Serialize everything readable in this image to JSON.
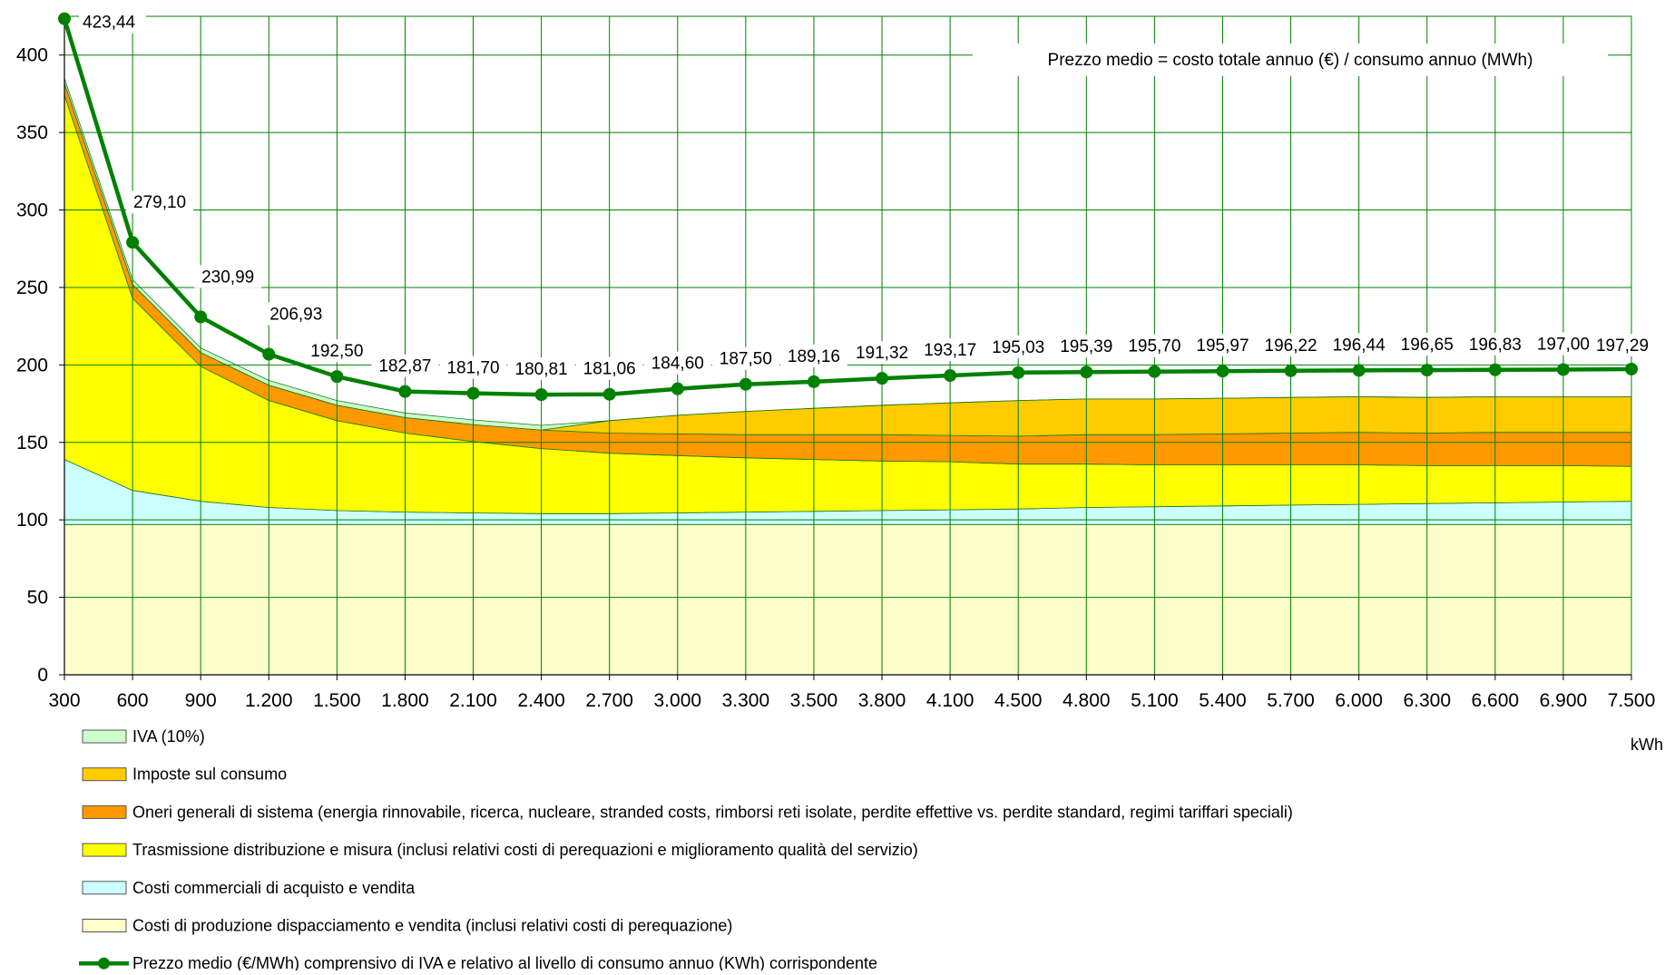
{
  "chart_data": {
    "type": "area",
    "note": "Prezzo medio = costo totale annuo (€) / consumo annuo (MWh)",
    "xlabel": "kWh",
    "ylabel": "",
    "ylim": [
      0,
      425
    ],
    "yticks": [
      0,
      50,
      100,
      150,
      200,
      250,
      300,
      350,
      400
    ],
    "grid": true,
    "legend_position": "bottom",
    "categories": [
      "300",
      "600",
      "900",
      "1.200",
      "1.500",
      "1.800",
      "2.100",
      "2.400",
      "2.700",
      "3.000",
      "3.300",
      "3.500",
      "3.800",
      "4.100",
      "4.500",
      "4.800",
      "5.100",
      "5.400",
      "5.700",
      "6.000",
      "6.300",
      "6.600",
      "6.900",
      "7.500"
    ],
    "stack_series": [
      {
        "name": "Costi di produzione dispacciamento e vendita (inclusi relativi costi di perequazione)",
        "color": "#FFFFCC",
        "values": [
          97,
          97,
          97,
          97,
          97,
          97,
          97,
          97,
          97,
          97,
          97,
          97,
          97,
          97,
          97,
          97,
          97,
          97,
          97,
          97,
          97,
          97,
          97,
          97
        ]
      },
      {
        "name": "Costi commerciali di acquisto e vendita",
        "color": "#CCFFFF",
        "values": [
          42,
          22,
          15,
          11,
          9,
          8,
          7.5,
          7,
          7,
          7.5,
          8,
          8.5,
          9,
          9.5,
          10,
          11,
          11.5,
          12,
          12.5,
          13,
          13.5,
          14,
          14.5,
          15
        ]
      },
      {
        "name": "Trasmissione distribuzione e misura (inclusi relativi costi di perequazioni e miglioramento qualità del servizio)",
        "color": "#FFFF00",
        "values": [
          235,
          124,
          87,
          69,
          58,
          51,
          46,
          42,
          39,
          37,
          35,
          33.5,
          32,
          31,
          29,
          28,
          27,
          26.5,
          26,
          25.5,
          24.5,
          24,
          23.5,
          22.5
        ]
      },
      {
        "name": "Oneri generali di sistema (energia rinnovabile, ricerca, nucleare, stranded costs, rimborsi reti isolate, perdite effettive vs. perdite standard, regimi tariffari speciali)",
        "color": "#FF9900",
        "values": [
          8,
          9,
          9,
          10,
          10,
          10,
          11,
          12,
          13,
          14,
          15,
          16,
          17,
          17,
          18,
          19,
          19.5,
          20,
          20.5,
          21,
          21,
          21.5,
          21.5,
          22
        ]
      },
      {
        "name": "Imposte sul consumo",
        "color": "#FFCC00",
        "values": [
          0,
          0,
          0,
          0,
          0,
          0,
          0,
          0,
          8,
          12,
          15,
          17,
          19,
          21,
          23,
          23,
          23,
          23,
          23,
          23,
          23,
          23,
          23,
          23
        ]
      },
      {
        "name": "IVA (10%)",
        "color": "#CCFFCC",
        "values": [
          3,
          3,
          3,
          3,
          3,
          3,
          3,
          3,
          0,
          0,
          0,
          0,
          0,
          0,
          0,
          0,
          0,
          0,
          0,
          0,
          0,
          0,
          0,
          0
        ]
      }
    ],
    "line_series": {
      "name": "Prezzo medio (€/MWh) comprensivo di IVA e relativo al livello di consumo annuo (KWh) corrispondente",
      "color": "#008000",
      "values": [
        423.44,
        279.1,
        230.99,
        206.93,
        192.5,
        182.87,
        181.7,
        180.81,
        181.06,
        184.6,
        187.5,
        189.16,
        191.32,
        193.17,
        195.03,
        195.39,
        195.7,
        195.97,
        196.22,
        196.44,
        196.65,
        196.83,
        197.0,
        197.29
      ],
      "labels": [
        "423,44",
        "279,10",
        "230,99",
        "206,93",
        "192,50",
        "182,87",
        "181,70",
        "180,81",
        "181,06",
        "184,60",
        "187,50",
        "189,16",
        "191,32",
        "193,17",
        "195,03",
        "195,39",
        "195,70",
        "195,97",
        "196,22",
        "196,44",
        "196,65",
        "196,83",
        "197,00",
        "197,29"
      ]
    },
    "legend_order": [
      "IVA (10%)",
      "Imposte sul consumo",
      "Oneri generali di sistema (energia rinnovabile, ricerca, nucleare, stranded costs, rimborsi reti isolate, perdite effettive vs. perdite standard, regimi tariffari speciali)",
      "Trasmissione distribuzione e misura (inclusi relativi costi di perequazioni e miglioramento qualità del servizio)",
      "Costi commerciali di acquisto e vendita",
      "Costi di produzione dispacciamento e vendita (inclusi relativi costi di perequazione)",
      "Prezzo medio (€/MWh) comprensivo di IVA e relativo al livello di consumo annuo (KWh) corrispondente"
    ]
  }
}
